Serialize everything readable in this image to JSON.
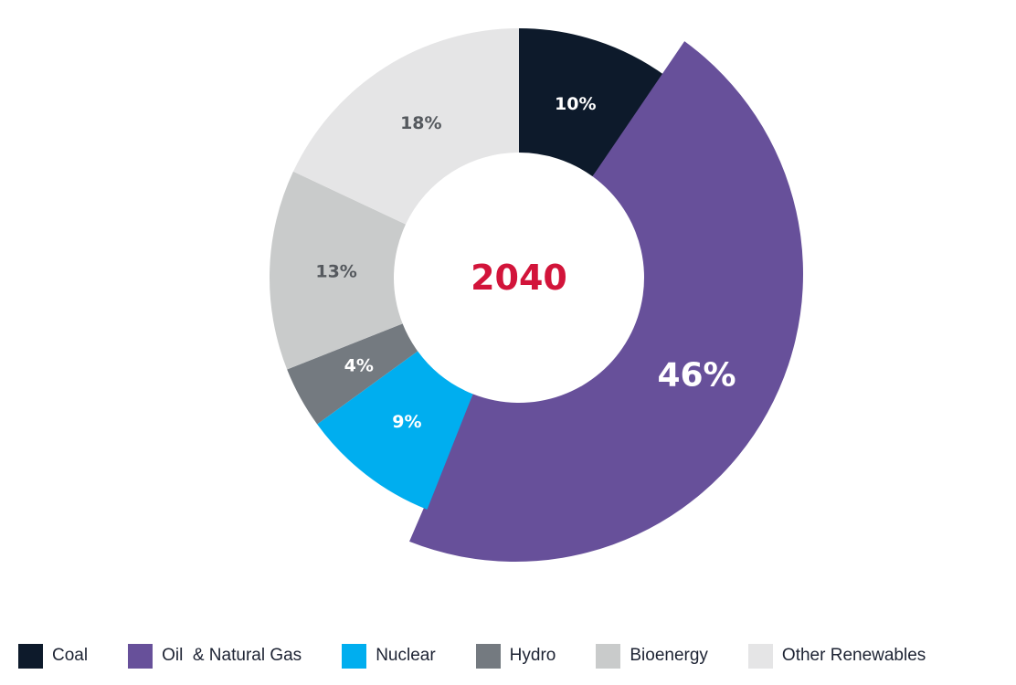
{
  "chart_data": {
    "type": "pie",
    "variant": "donut",
    "center_label": "2040",
    "center_label_color": "#d2143a",
    "categories": [
      "Coal",
      "Oil  & Natural Gas",
      "Nuclear",
      "Hydro",
      "Bioenergy",
      "Other Renewables"
    ],
    "values": [
      10,
      46,
      9,
      4,
      13,
      18
    ],
    "value_labels": [
      "10%",
      "46%",
      "9%",
      "4%",
      "13%",
      "18%"
    ],
    "colors": [
      "#0d1a2b",
      "#67509a",
      "#00aeef",
      "#747a80",
      "#c9cbcb",
      "#e5e5e6"
    ],
    "label_colors": [
      "#ffffff",
      "#ffffff",
      "#ffffff",
      "#ffffff",
      "#55595e",
      "#55595e"
    ],
    "exploded_series": "Oil  & Natural Gas",
    "legend_position": "bottom"
  }
}
